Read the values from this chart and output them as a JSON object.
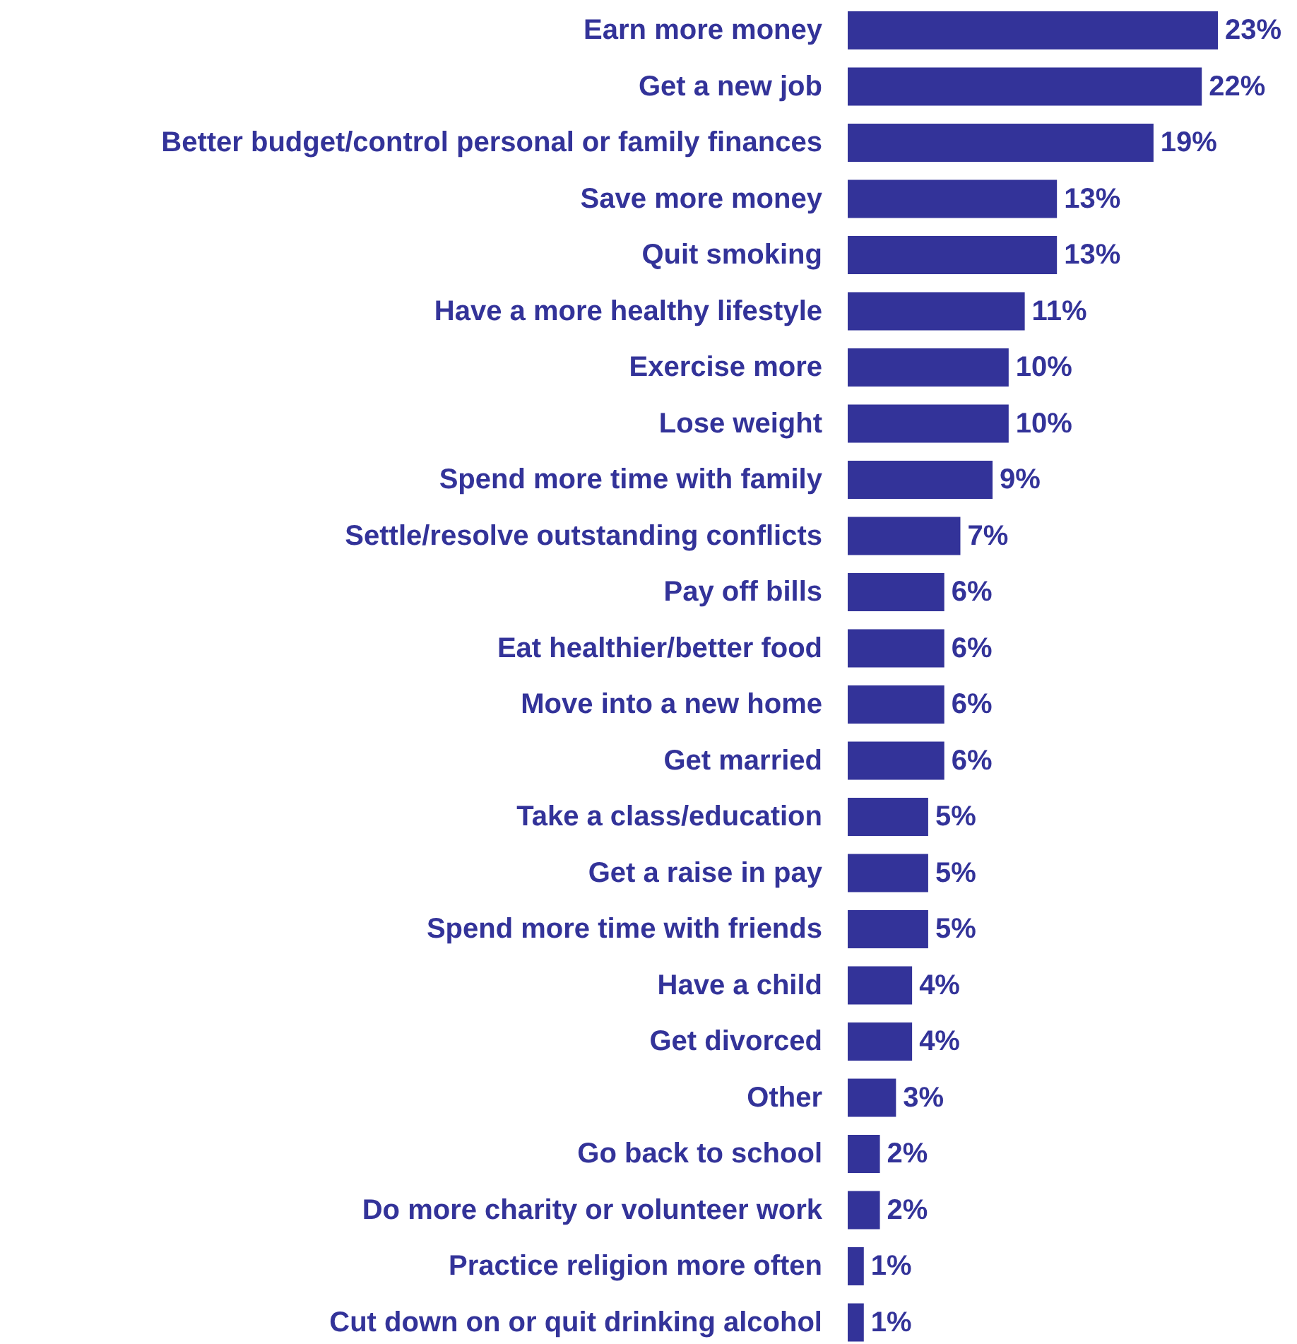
{
  "chart_data": {
    "type": "bar",
    "orientation": "horizontal",
    "color": "#333399",
    "categories": [
      "Earn more money",
      "Get a new job",
      "Better budget/control personal or family finances",
      "Save more money",
      "Quit smoking",
      "Have a more healthy lifestyle",
      "Exercise more",
      "Lose weight",
      "Spend more time with family",
      "Settle/resolve outstanding conflicts",
      "Pay off bills",
      "Eat healthier/better food",
      "Move into a new home",
      "Get married",
      "Take a class/education",
      "Get a raise in pay",
      "Spend more time with friends",
      "Have a child",
      "Get divorced",
      "Other",
      "Go back to school",
      "Do more charity or volunteer work",
      "Practice religion more often",
      "Cut down on or quit drinking alcohol"
    ],
    "values": [
      23,
      22,
      19,
      13,
      13,
      11,
      10,
      10,
      9,
      7,
      6,
      6,
      6,
      6,
      5,
      5,
      5,
      4,
      4,
      3,
      2,
      2,
      1,
      1
    ],
    "value_labels": [
      "23%",
      "22%",
      "19%",
      "13%",
      "13%",
      "11%",
      "10%",
      "10%",
      "9%",
      "7%",
      "6%",
      "6%",
      "6%",
      "6%",
      "5%",
      "5%",
      "5%",
      "4%",
      "4%",
      "3%",
      "2%",
      "2%",
      "1%",
      "1%"
    ]
  }
}
